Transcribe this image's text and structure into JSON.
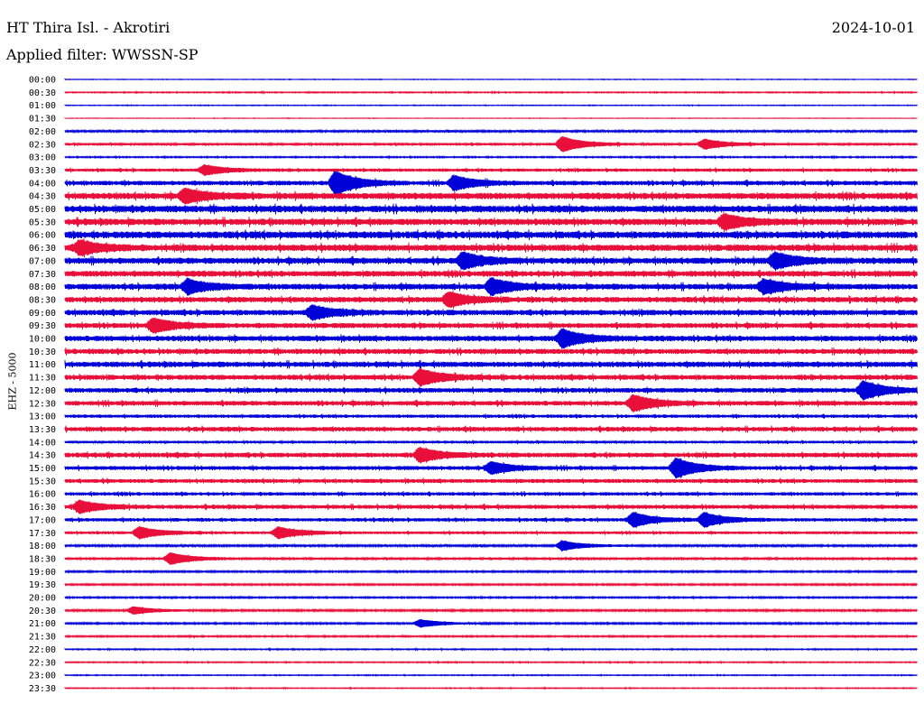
{
  "header": {
    "station": "HT Thira Isl. - Akrotiri",
    "date": "2024-10-01",
    "filter": "Applied filter: WWSSN-SP"
  },
  "chart_data": {
    "type": "line",
    "title": "HT Thira Isl. - Akrotiri",
    "ylabel": "EHZ - 5000",
    "row_labels": [
      "00:00",
      "00:30",
      "01:00",
      "01:30",
      "02:00",
      "02:30",
      "03:00",
      "03:30",
      "04:00",
      "04:30",
      "05:00",
      "05:30",
      "06:00",
      "06:30",
      "07:00",
      "07:30",
      "08:00",
      "08:30",
      "09:00",
      "09:30",
      "10:00",
      "10:30",
      "11:00",
      "11:30",
      "12:00",
      "12:30",
      "13:00",
      "13:30",
      "14:00",
      "14:30",
      "15:00",
      "15:30",
      "16:00",
      "16:30",
      "17:00",
      "17:30",
      "18:00",
      "18:30",
      "19:00",
      "19:30",
      "20:00",
      "20:30",
      "21:00",
      "21:30",
      "22:00",
      "22:30",
      "23:00",
      "23:30"
    ],
    "row_colors": [
      "#0000d8",
      "#e8103a"
    ],
    "noise_level": [
      0.3,
      0.6,
      0.4,
      0.3,
      1.2,
      1.4,
      0.7,
      1.8,
      2.5,
      3.5,
      3.8,
      3.6,
      3.8,
      3.6,
      3.4,
      3.2,
      3.2,
      3.0,
      3.0,
      2.8,
      3.0,
      2.9,
      3.0,
      2.8,
      2.6,
      2.6,
      1.8,
      2.5,
      1.5,
      2.6,
      2.2,
      2.2,
      1.9,
      2.3,
      1.9,
      1.6,
      1.1,
      1.3,
      0.9,
      0.9,
      0.8,
      1.0,
      0.9,
      0.8,
      0.6,
      0.6,
      0.5,
      0.5
    ],
    "events": [
      {
        "row": 5,
        "minute": 17.5,
        "amp": 8
      },
      {
        "row": 5,
        "minute": 22.5,
        "amp": 5
      },
      {
        "row": 7,
        "minute": 4.9,
        "amp": 5
      },
      {
        "row": 8,
        "minute": 9.5,
        "amp": 12
      },
      {
        "row": 8,
        "minute": 13.7,
        "amp": 7
      },
      {
        "row": 9,
        "minute": 4.2,
        "amp": 7
      },
      {
        "row": 11,
        "minute": 23.2,
        "amp": 7
      },
      {
        "row": 13,
        "minute": 0.5,
        "amp": 7
      },
      {
        "row": 14,
        "minute": 14.0,
        "amp": 8
      },
      {
        "row": 14,
        "minute": 25.0,
        "amp": 8
      },
      {
        "row": 16,
        "minute": 4.3,
        "amp": 7
      },
      {
        "row": 16,
        "minute": 15.0,
        "amp": 8
      },
      {
        "row": 16,
        "minute": 24.6,
        "amp": 7
      },
      {
        "row": 17,
        "minute": 13.5,
        "amp": 7
      },
      {
        "row": 18,
        "minute": 8.7,
        "amp": 7
      },
      {
        "row": 19,
        "minute": 3.1,
        "amp": 7
      },
      {
        "row": 20,
        "minute": 17.5,
        "amp": 9
      },
      {
        "row": 23,
        "minute": 12.5,
        "amp": 8
      },
      {
        "row": 24,
        "minute": 28.1,
        "amp": 9
      },
      {
        "row": 25,
        "minute": 20.0,
        "amp": 8
      },
      {
        "row": 29,
        "minute": 12.5,
        "amp": 7
      },
      {
        "row": 30,
        "minute": 21.5,
        "amp": 10
      },
      {
        "row": 30,
        "minute": 15.0,
        "amp": 6
      },
      {
        "row": 33,
        "minute": 0.5,
        "amp": 6
      },
      {
        "row": 34,
        "minute": 20.0,
        "amp": 7
      },
      {
        "row": 34,
        "minute": 22.5,
        "amp": 7
      },
      {
        "row": 35,
        "minute": 2.6,
        "amp": 6
      },
      {
        "row": 35,
        "minute": 7.5,
        "amp": 6
      },
      {
        "row": 36,
        "minute": 17.5,
        "amp": 5
      },
      {
        "row": 37,
        "minute": 3.7,
        "amp": 6
      },
      {
        "row": 41,
        "minute": 2.4,
        "amp": 4
      },
      {
        "row": 42,
        "minute": 12.5,
        "amp": 4
      }
    ]
  }
}
